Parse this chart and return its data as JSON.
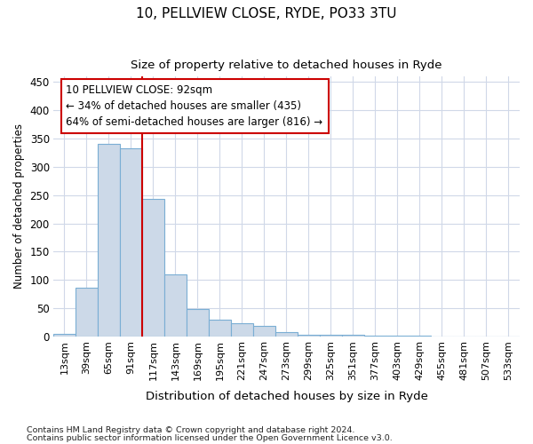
{
  "title_line1": "10, PELLVIEW CLOSE, RYDE, PO33 3TU",
  "title_line2": "Size of property relative to detached houses in Ryde",
  "xlabel": "Distribution of detached houses by size in Ryde",
  "ylabel": "Number of detached properties",
  "bar_labels": [
    "13sqm",
    "39sqm",
    "65sqm",
    "91sqm",
    "117sqm",
    "143sqm",
    "169sqm",
    "195sqm",
    "221sqm",
    "247sqm",
    "273sqm",
    "299sqm",
    "325sqm",
    "351sqm",
    "377sqm",
    "403sqm",
    "429sqm",
    "455sqm",
    "481sqm",
    "507sqm",
    "533sqm"
  ],
  "bar_values": [
    5,
    87,
    340,
    333,
    243,
    110,
    49,
    30,
    24,
    19,
    8,
    4,
    4,
    3,
    1,
    1,
    1,
    0,
    0,
    0,
    0
  ],
  "bar_color": "#ccd9e8",
  "bar_edgecolor": "#7aaed4",
  "vline_x_index": 3,
  "vline_color": "#cc0000",
  "property_label": "10 PELLVIEW CLOSE: 92sqm",
  "pct_smaller": 34,
  "n_smaller": 435,
  "pct_larger_semi": 64,
  "n_larger_semi": 816,
  "annotation_box_color": "#cc0000",
  "ylim": [
    0,
    460
  ],
  "yticks": [
    0,
    50,
    100,
    150,
    200,
    250,
    300,
    350,
    400,
    450
  ],
  "footnote1": "Contains HM Land Registry data © Crown copyright and database right 2024.",
  "footnote2": "Contains public sector information licensed under the Open Government Licence v3.0.",
  "bg_color": "#ffffff",
  "grid_color": "#d0d8e8"
}
